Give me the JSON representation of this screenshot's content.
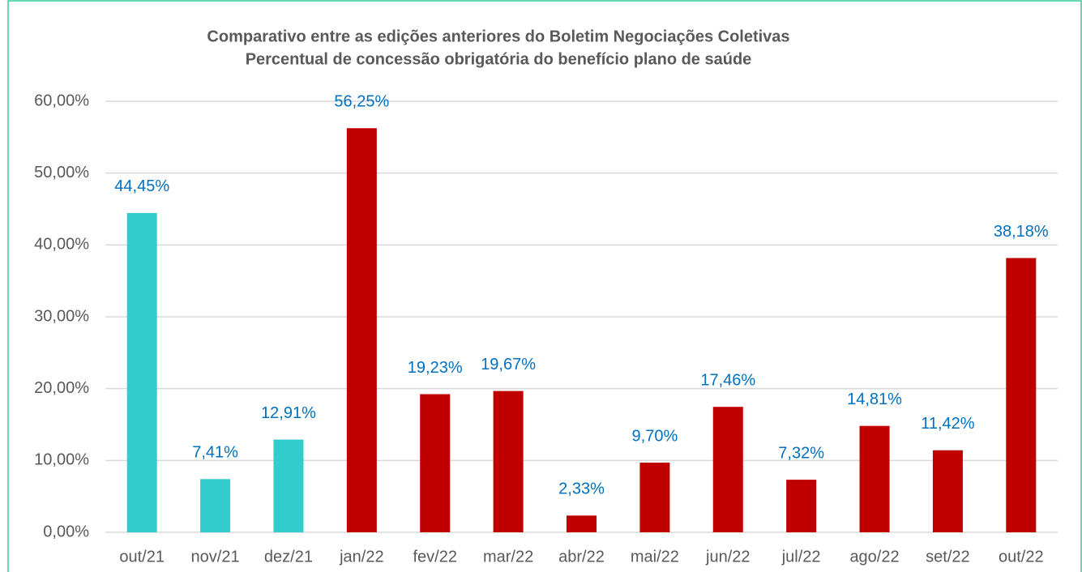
{
  "chart_data": {
    "type": "bar",
    "title": [
      "Comparativo entre as edições anteriores do Boletim Negociações Coletivas",
      "Percentual de concessão obrigatória do benefício plano de saúde"
    ],
    "categories": [
      "out/21",
      "nov/21",
      "dez/21",
      "jan/22",
      "fev/22",
      "mar/22",
      "abr/22",
      "mai/22",
      "jun/22",
      "jul/22",
      "ago/22",
      "set/22",
      "out/22"
    ],
    "values": [
      44.45,
      7.41,
      12.91,
      56.25,
      19.23,
      19.67,
      2.33,
      9.7,
      17.46,
      7.32,
      14.81,
      11.42,
      38.18
    ],
    "value_labels": [
      "44,45%",
      "7,41%",
      "12,91%",
      "56,25%",
      "19,23%",
      "19,67%",
      "2,33%",
      "9,70%",
      "17,46%",
      "7,32%",
      "14,81%",
      "11,42%",
      "38,18%"
    ],
    "colors": [
      "#33cccc",
      "#33cccc",
      "#33cccc",
      "#c00000",
      "#c00000",
      "#c00000",
      "#c00000",
      "#c00000",
      "#c00000",
      "#c00000",
      "#c00000",
      "#c00000",
      "#c00000"
    ],
    "ylim": [
      0,
      60
    ],
    "yticks": [
      {
        "value": 0,
        "label": "0,00%"
      },
      {
        "value": 10,
        "label": "10,00%"
      },
      {
        "value": 20,
        "label": "20,00%"
      },
      {
        "value": 30,
        "label": "30,00%"
      },
      {
        "value": 40,
        "label": "40,00%"
      },
      {
        "value": 50,
        "label": "50,00%"
      },
      {
        "value": 60,
        "label": "60,00%"
      }
    ],
    "grid": true
  }
}
